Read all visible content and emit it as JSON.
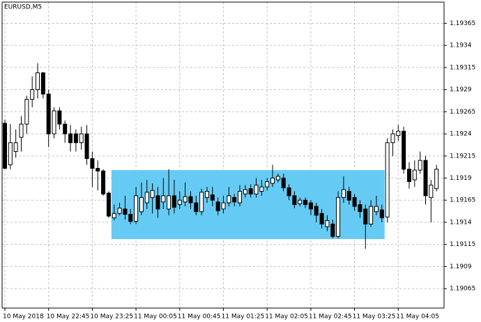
{
  "chart_data": {
    "type": "candlestick",
    "title": "EURUSD,M5",
    "categories": [
      "10 May 2018",
      null,
      null,
      null,
      null,
      null,
      null,
      null,
      "10 May 22:45",
      null,
      null,
      null,
      null,
      null,
      null,
      null,
      "10 May 23:25",
      null,
      null,
      null,
      null,
      null,
      null,
      null,
      "11 May 00:05",
      null,
      null,
      null,
      null,
      null,
      null,
      null,
      "11 May 00:45",
      null,
      null,
      null,
      null,
      null,
      null,
      null,
      "11 May 01:25",
      null,
      null,
      null,
      null,
      null,
      null,
      null,
      "11 May 02:05",
      null,
      null,
      null,
      null,
      null,
      null,
      null,
      "11 May 02:45",
      null,
      null,
      null,
      null,
      null,
      null,
      null,
      "11 May 03:25",
      null,
      null,
      null,
      null,
      null,
      null,
      null,
      "11 May 04:05",
      null,
      null,
      null,
      null,
      null,
      null,
      null
    ],
    "open": [
      1.19252,
      1.19205,
      1.1922,
      1.19236,
      1.19251,
      1.19279,
      1.1929,
      1.19309,
      1.19285,
      1.1924,
      1.19266,
      1.19251,
      1.1924,
      1.1924,
      1.1923,
      1.1924,
      1.19212,
      1.19201,
      1.19198,
      1.19173,
      1.19145,
      1.1915,
      1.19155,
      1.19149,
      1.19141,
      1.19152,
      1.19162,
      1.19168,
      1.1917,
      1.19163,
      1.19155,
      1.1917,
      1.1916,
      1.19163,
      1.19169,
      1.19162,
      1.19152,
      1.19168,
      1.19171,
      1.19163,
      1.19155,
      1.19162,
      1.19168,
      1.19162,
      1.19172,
      1.19178,
      1.19172,
      1.19175,
      1.1918,
      1.19184,
      1.19188,
      1.1919,
      1.19179,
      1.1917,
      1.19161,
      1.19165,
      1.19162,
      1.19158,
      1.1915,
      1.19135,
      1.19138,
      1.19124,
      1.19168,
      1.19175,
      1.19168,
      1.1916,
      1.19155,
      1.19138,
      1.19152,
      1.19154,
      1.19146,
      1.1923,
      1.19238,
      1.19243,
      1.192,
      1.19188,
      1.19199,
      1.1921,
      1.19168,
      1.19178
    ],
    "high": [
      1.19256,
      1.19251,
      1.19245,
      1.1926,
      1.19283,
      1.19305,
      1.1932,
      1.1931,
      1.1929,
      1.1927,
      1.1927,
      1.19255,
      1.1925,
      1.19245,
      1.19248,
      1.1925,
      1.1922,
      1.1921,
      1.192,
      1.19175,
      1.1916,
      1.19162,
      1.1917,
      1.19155,
      1.1918,
      1.19185,
      1.19188,
      1.19184,
      1.1918,
      1.1919,
      1.192,
      1.19188,
      1.19175,
      1.19185,
      1.19175,
      1.1917,
      1.19178,
      1.1918,
      1.1918,
      1.19168,
      1.1917,
      1.1918,
      1.19172,
      1.19182,
      1.19182,
      1.19183,
      1.1919,
      1.19188,
      1.1919,
      1.19205,
      1.19195,
      1.19195,
      1.19183,
      1.19175,
      1.19168,
      1.19168,
      1.19165,
      1.19162,
      1.19155,
      1.19148,
      1.19143,
      1.19175,
      1.19192,
      1.1918,
      1.19172,
      1.19165,
      1.1916,
      1.19165,
      1.1917,
      1.1916,
      1.19235,
      1.19245,
      1.1925,
      1.19248,
      1.19208,
      1.1921,
      1.1922,
      1.19215,
      1.19188,
      1.19205
    ],
    "low": [
      1.192,
      1.192,
      1.19213,
      1.1922,
      1.1924,
      1.1927,
      1.1928,
      1.1928,
      1.19225,
      1.19235,
      1.19245,
      1.1923,
      1.1922,
      1.1922,
      1.19222,
      1.19205,
      1.1918,
      1.19176,
      1.1917,
      1.19145,
      1.19142,
      1.19148,
      1.19143,
      1.19138,
      1.19138,
      1.19148,
      1.19155,
      1.1915,
      1.19145,
      1.19155,
      1.19148,
      1.1915,
      1.19155,
      1.19158,
      1.19155,
      1.19148,
      1.19148,
      1.19162,
      1.19158,
      1.19148,
      1.1915,
      1.19158,
      1.19158,
      1.19158,
      1.19168,
      1.19168,
      1.19168,
      1.1917,
      1.19176,
      1.1918,
      1.19185,
      1.19175,
      1.19165,
      1.19156,
      1.19158,
      1.19156,
      1.19148,
      1.1914,
      1.19133,
      1.1913,
      1.19122,
      1.19122,
      1.19162,
      1.1916,
      1.19153,
      1.19145,
      1.1911,
      1.19135,
      1.19148,
      1.1914,
      1.1914,
      1.19215,
      1.19232,
      1.19195,
      1.19178,
      1.1918,
      1.19195,
      1.1916,
      1.1914,
      1.19175
    ],
    "close": [
      1.19201,
      1.1923,
      1.1923,
      1.19251,
      1.19279,
      1.1929,
      1.19309,
      1.19285,
      1.1924,
      1.19266,
      1.19251,
      1.1924,
      1.1923,
      1.1923,
      1.1924,
      1.19212,
      1.19201,
      1.19198,
      1.19172,
      1.19147,
      1.1915,
      1.19156,
      1.19149,
      1.19141,
      1.1917,
      1.19168,
      1.19174,
      1.19176,
      1.19155,
      1.1917,
      1.1917,
      1.19157,
      1.19165,
      1.19169,
      1.19162,
      1.19152,
      1.19174,
      1.19175,
      1.19165,
      1.19153,
      1.19162,
      1.1917,
      1.19163,
      1.19175,
      1.19177,
      1.19172,
      1.19182,
      1.1918,
      1.19186,
      1.1919,
      1.19192,
      1.19179,
      1.1917,
      1.1916,
      1.19165,
      1.1916,
      1.19155,
      1.19148,
      1.19138,
      1.19142,
      1.19124,
      1.19168,
      1.19177,
      1.19165,
      1.19158,
      1.19152,
      1.19138,
      1.19158,
      1.19158,
      1.19145,
      1.1923,
      1.1924,
      1.19243,
      1.192,
      1.19186,
      1.19199,
      1.1921,
      1.1917,
      1.19182,
      1.192
    ],
    "up_color": "#ffffff",
    "down_color": "#000000",
    "rectangle": {
      "x": [
        19.5,
        69.5
      ],
      "y": [
        1.19121,
        1.19199
      ],
      "color": "#66cbf4"
    },
    "ylim": [
      1.19043,
      1.19389
    ],
    "yticks": [
      1.19065,
      1.1909,
      1.19115,
      1.1914,
      1.19165,
      1.1919,
      1.19215,
      1.1924,
      1.19265,
      1.1929,
      1.19315,
      1.1934,
      1.19365
    ],
    "grid": true
  }
}
